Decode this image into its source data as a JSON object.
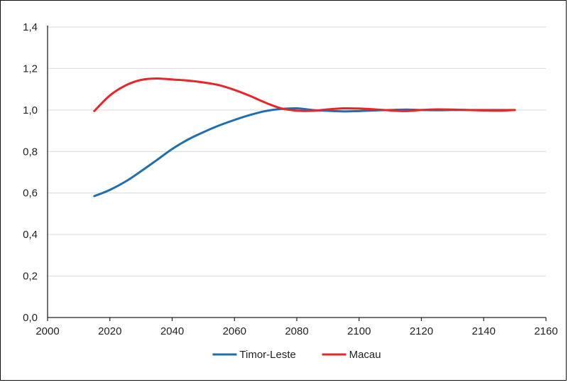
{
  "chart_data": {
    "type": "line",
    "title": "",
    "xlabel": "",
    "ylabel": "",
    "xlim": [
      2000,
      2160
    ],
    "ylim": [
      0,
      1.4
    ],
    "x_ticks": [
      2000,
      2020,
      2040,
      2060,
      2080,
      2100,
      2120,
      2140,
      2160
    ],
    "y_ticks": [
      0,
      0.2,
      0.4,
      0.6,
      0.8,
      1.0,
      1.2,
      1.4
    ],
    "x_tick_labels": [
      "2000",
      "2020",
      "2040",
      "2060",
      "2080",
      "2100",
      "2120",
      "2140",
      "2160"
    ],
    "y_tick_labels": [
      "0,0",
      "0,2",
      "0,4",
      "0,6",
      "0,8",
      "1,0",
      "1,2",
      "1,4"
    ],
    "grid": "horizontal",
    "legend_position": "bottom",
    "series": [
      {
        "name": "Timor-Leste",
        "color": "#1f6fad",
        "x": [
          2015,
          2020,
          2025,
          2030,
          2035,
          2040,
          2045,
          2050,
          2055,
          2060,
          2065,
          2070,
          2075,
          2080,
          2085,
          2090,
          2095,
          2100,
          2105,
          2110,
          2115,
          2120,
          2125,
          2130,
          2135,
          2140,
          2145,
          2150
        ],
        "values": [
          0.585,
          0.615,
          0.655,
          0.705,
          0.758,
          0.812,
          0.857,
          0.893,
          0.925,
          0.952,
          0.976,
          0.995,
          1.005,
          1.008,
          1.0,
          0.996,
          0.993,
          0.995,
          0.998,
          1.0,
          1.002,
          1.0,
          0.999,
          1.0,
          1.0,
          1.0,
          1.0,
          1.0
        ]
      },
      {
        "name": "Macau",
        "color": "#e8252a",
        "x": [
          2015,
          2020,
          2025,
          2030,
          2035,
          2040,
          2045,
          2050,
          2055,
          2060,
          2065,
          2070,
          2075,
          2080,
          2085,
          2090,
          2095,
          2100,
          2105,
          2110,
          2115,
          2120,
          2125,
          2130,
          2135,
          2140,
          2145,
          2150
        ],
        "values": [
          0.995,
          1.07,
          1.118,
          1.145,
          1.152,
          1.147,
          1.142,
          1.133,
          1.12,
          1.097,
          1.068,
          1.035,
          1.008,
          0.997,
          0.996,
          1.003,
          1.008,
          1.007,
          1.003,
          0.998,
          0.995,
          1.0,
          1.003,
          1.002,
          1.0,
          0.998,
          0.997,
          1.0
        ]
      }
    ]
  }
}
